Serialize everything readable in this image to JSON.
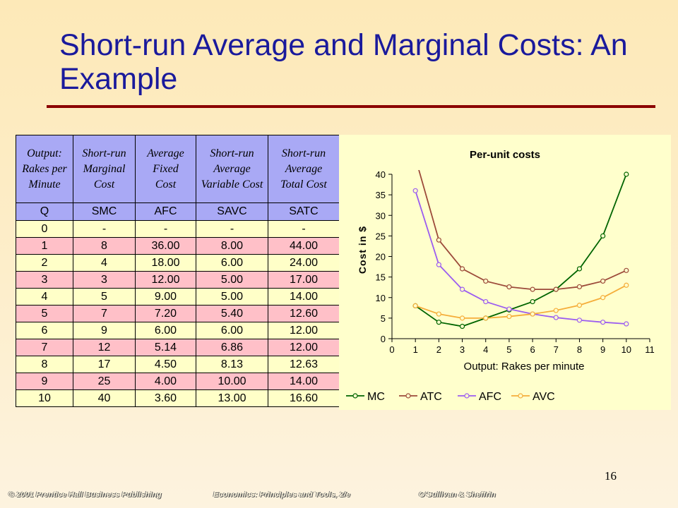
{
  "slide": {
    "title": "Short-run Average and Marginal Costs:  An Example",
    "page_number": "16",
    "footer": {
      "publisher": "© 2001 Prentice Hall Business Publishing",
      "book": "Economics: Principles and Tools, 2/e",
      "authors": "O'Sullivan & Sheffrin"
    },
    "colors": {
      "title": "#1a1a9c",
      "rule": "#8b0000",
      "header_bg": "#a9a9f5",
      "row_yellow": "#ffffc8",
      "row_pink": "#ffc0c8"
    }
  },
  "table": {
    "headers": [
      {
        "desc": "Output:\nRakes per\nMinute",
        "symbol": "Q"
      },
      {
        "desc": "Short-run\nMarginal\nCost",
        "symbol": "SMC"
      },
      {
        "desc": "Average\nFixed\nCost",
        "symbol": "AFC"
      },
      {
        "desc": "Short-run\nAverage\nVariable Cost",
        "symbol": "SAVC"
      },
      {
        "desc": "Short-run\nAverage\nTotal Cost",
        "symbol": "SATC"
      }
    ],
    "rows": [
      [
        "0",
        "-",
        "-",
        "-",
        "-"
      ],
      [
        "1",
        "8",
        "36.00",
        "8.00",
        "44.00"
      ],
      [
        "2",
        "4",
        "18.00",
        "6.00",
        "24.00"
      ],
      [
        "3",
        "3",
        "12.00",
        "5.00",
        "17.00"
      ],
      [
        "4",
        "5",
        "9.00",
        "5.00",
        "14.00"
      ],
      [
        "5",
        "7",
        "7.20",
        "5.40",
        "12.60"
      ],
      [
        "6",
        "9",
        "6.00",
        "6.00",
        "12.00"
      ],
      [
        "7",
        "12",
        "5.14",
        "6.86",
        "12.00"
      ],
      [
        "8",
        "17",
        "4.50",
        "8.13",
        "12.63"
      ],
      [
        "9",
        "25",
        "4.00",
        "10.00",
        "14.00"
      ],
      [
        "10",
        "40",
        "3.60",
        "13.00",
        "16.60"
      ]
    ]
  },
  "chart_data": {
    "type": "line",
    "title": "Per-unit costs",
    "xlabel": "Output: Rakes per minute",
    "ylabel": "Cost in $",
    "xlim": [
      0,
      11
    ],
    "ylim": [
      0,
      40
    ],
    "xticks": [
      0,
      1,
      2,
      3,
      4,
      5,
      6,
      7,
      8,
      9,
      10,
      11
    ],
    "yticks": [
      0,
      5,
      10,
      15,
      20,
      25,
      30,
      35,
      40
    ],
    "grid": false,
    "legend_position": "bottom",
    "x": [
      1,
      2,
      3,
      4,
      5,
      6,
      7,
      8,
      9,
      10
    ],
    "series": [
      {
        "name": "MC",
        "color": "#006400",
        "values": [
          8,
          4,
          3,
          5,
          7,
          9,
          12,
          17,
          25,
          40
        ]
      },
      {
        "name": "ATC",
        "color": "#9c4a3a",
        "values": [
          44,
          24,
          17,
          14,
          12.6,
          12,
          12,
          12.63,
          14,
          16.6
        ]
      },
      {
        "name": "AFC",
        "color": "#9b5cf0",
        "values": [
          36,
          18,
          12,
          9,
          7.2,
          6,
          5.14,
          4.5,
          4,
          3.6
        ]
      },
      {
        "name": "AVC",
        "color": "#f5ad3a",
        "values": [
          8,
          6,
          5,
          5,
          5.4,
          6,
          6.86,
          8.13,
          10,
          13
        ]
      }
    ]
  }
}
